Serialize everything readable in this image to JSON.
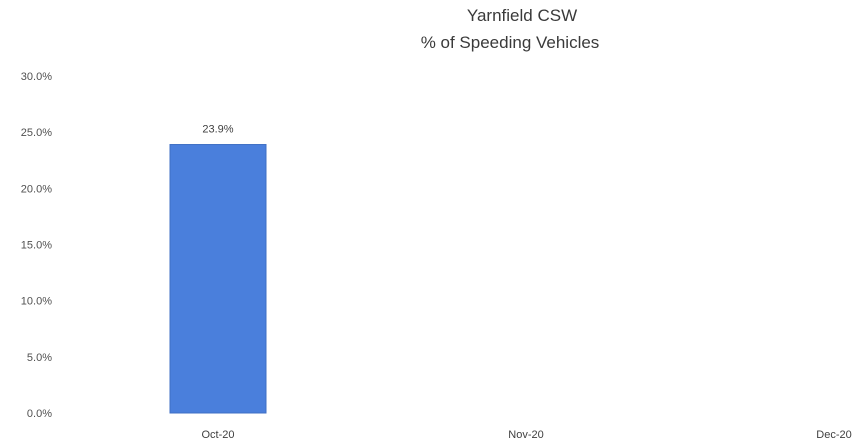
{
  "chart_data": {
    "type": "bar",
    "title": "Yarnfield CSW",
    "subtitle": "% of Speeding Vehicles",
    "categories": [
      "Oct-20",
      "Nov-20",
      "Dec-20"
    ],
    "values": [
      23.9,
      null,
      null
    ],
    "data_labels": [
      "23.9%",
      "",
      ""
    ],
    "ylim": [
      0,
      30
    ],
    "yticks": [
      "0.0%",
      "5.0%",
      "10.0%",
      "15.0%",
      "20.0%",
      "25.0%",
      "30.0%"
    ],
    "xlabel": "",
    "ylabel": "",
    "grid": false,
    "bar_color": "#4a7fdc",
    "bar_edge_color": "#3f6fc4"
  }
}
